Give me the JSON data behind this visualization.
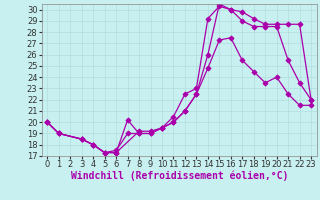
{
  "xlabel": "Windchill (Refroidissement éolien,°C)",
  "bg_color": "#c8f0f0",
  "grid_color": "#b0dede",
  "line_color": "#aa00aa",
  "xlim": [
    -0.5,
    23.5
  ],
  "ylim": [
    17,
    30.5
  ],
  "xticks": [
    0,
    1,
    2,
    3,
    4,
    5,
    6,
    7,
    8,
    9,
    10,
    11,
    12,
    13,
    14,
    15,
    16,
    17,
    18,
    19,
    20,
    21,
    22,
    23
  ],
  "yticks": [
    17,
    18,
    19,
    20,
    21,
    22,
    23,
    24,
    25,
    26,
    27,
    28,
    29,
    30
  ],
  "line1_x": [
    0,
    1,
    3,
    4,
    5,
    6,
    7,
    8,
    9,
    10,
    11,
    12,
    13,
    14,
    15,
    16,
    17,
    18,
    19,
    20,
    21,
    22,
    23
  ],
  "line1_y": [
    20.0,
    19.0,
    18.5,
    18.0,
    17.3,
    17.5,
    19.0,
    19.0,
    19.0,
    19.5,
    20.0,
    21.0,
    22.5,
    24.8,
    27.3,
    27.5,
    25.5,
    24.5,
    23.5,
    24.0,
    22.5,
    21.5,
    21.5
  ],
  "line2_x": [
    0,
    1,
    3,
    4,
    5,
    6,
    7,
    8,
    9,
    10,
    11,
    12,
    13,
    14,
    15,
    16,
    17,
    18,
    19,
    20,
    21,
    22,
    23
  ],
  "line2_y": [
    20.0,
    19.0,
    18.5,
    18.0,
    17.3,
    17.3,
    20.2,
    19.0,
    19.0,
    19.5,
    20.5,
    22.5,
    23.0,
    29.2,
    30.3,
    30.0,
    29.8,
    29.2,
    28.7,
    28.7,
    28.7,
    28.7,
    22.0
  ],
  "line3_x": [
    0,
    1,
    3,
    4,
    5,
    6,
    8,
    9,
    10,
    11,
    12,
    13,
    14,
    15,
    16,
    17,
    18,
    19,
    20,
    21,
    22,
    23
  ],
  "line3_y": [
    20.0,
    19.0,
    18.5,
    18.0,
    17.3,
    17.3,
    19.2,
    19.2,
    19.5,
    20.0,
    21.0,
    22.5,
    26.0,
    30.5,
    30.0,
    29.0,
    28.5,
    28.5,
    28.5,
    25.5,
    23.5,
    22.0
  ],
  "marker": "D",
  "markersize": 2.5,
  "linewidth": 0.9,
  "xlabel_fontsize": 7,
  "tick_fontsize": 6,
  "figwidth": 3.2,
  "figheight": 2.0,
  "dpi": 100
}
